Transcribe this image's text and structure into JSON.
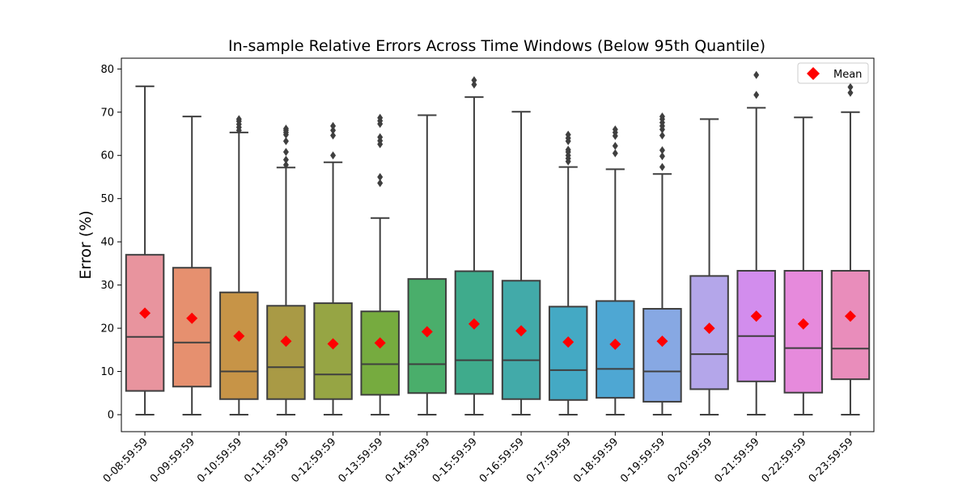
{
  "chart_data": {
    "type": "box",
    "title": "In-sample Relative Errors Across Time Windows (Below 95th Quantile)",
    "xlabel": "",
    "ylabel": "Error (%)",
    "ylim": [
      -4,
      83
    ],
    "yticks": [
      0,
      10,
      20,
      30,
      40,
      50,
      60,
      70,
      80
    ],
    "legend": {
      "label": "Mean",
      "position": "top-right",
      "marker": "red-diamond"
    },
    "colors": [
      "#e8949e",
      "#e6906f",
      "#c79447",
      "#a99a45",
      "#96a544",
      "#76ab3f",
      "#4aae6b",
      "#3fab8c",
      "#42aaa9",
      "#44a9c4",
      "#4ea7d3",
      "#87a8e3",
      "#b4a6ea",
      "#d28ded",
      "#e68adc",
      "#e98dbb"
    ],
    "categories": [
      "0-08:59:59",
      "0-09:59:59",
      "0-10:59:59",
      "0-11:59:59",
      "0-12:59:59",
      "0-13:59:59",
      "0-14:59:59",
      "0-15:59:59",
      "0-16:59:59",
      "0-17:59:59",
      "0-18:59:59",
      "0-19:59:59",
      "0-20:59:59",
      "0-21:59:59",
      "0-22:59:59",
      "0-23:59:59"
    ],
    "boxes": [
      {
        "min": 0,
        "q1": 5.5,
        "median": 18,
        "q3": 37,
        "max": 76,
        "mean": 23.5,
        "outliers": []
      },
      {
        "min": 0,
        "q1": 6.5,
        "median": 16.7,
        "q3": 34,
        "max": 69,
        "mean": 22.3,
        "outliers": []
      },
      {
        "min": 0,
        "q1": 3.6,
        "median": 10,
        "q3": 28.3,
        "max": 65.3,
        "mean": 18.2,
        "outliers": [
          65.8,
          66.5,
          67.2,
          67.9,
          68.4
        ]
      },
      {
        "min": 0,
        "q1": 3.6,
        "median": 11,
        "q3": 25.2,
        "max": 57.2,
        "mean": 17,
        "outliers": [
          57.8,
          59,
          60.8,
          63.3,
          64.8,
          65.3,
          65.8,
          66.2
        ]
      },
      {
        "min": 0,
        "q1": 3.6,
        "median": 9.3,
        "q3": 25.8,
        "max": 58.4,
        "mean": 16.4,
        "outliers": [
          60,
          64.6,
          65.8,
          66.8
        ]
      },
      {
        "min": 0,
        "q1": 4.6,
        "median": 11.7,
        "q3": 23.9,
        "max": 45.5,
        "mean": 16.6,
        "outliers": [
          53.6,
          55,
          62.6,
          63.4,
          64.2,
          67.3,
          68,
          68.7
        ]
      },
      {
        "min": 0,
        "q1": 5,
        "median": 11.7,
        "q3": 31.4,
        "max": 69.3,
        "mean": 19.2,
        "outliers": []
      },
      {
        "min": 0,
        "q1": 4.8,
        "median": 12.6,
        "q3": 33.2,
        "max": 73.5,
        "mean": 21,
        "outliers": [
          76.4,
          77.4
        ]
      },
      {
        "min": 0,
        "q1": 3.6,
        "median": 12.6,
        "q3": 31,
        "max": 70.1,
        "mean": 19.4,
        "outliers": []
      },
      {
        "min": 0,
        "q1": 3.4,
        "median": 10.3,
        "q3": 25,
        "max": 57.3,
        "mean": 16.8,
        "outliers": [
          58.6,
          59.3,
          60,
          60.8,
          61.3,
          63.3,
          64,
          64.8
        ]
      },
      {
        "min": 0,
        "q1": 3.9,
        "median": 10.6,
        "q3": 26.3,
        "max": 56.8,
        "mean": 16.3,
        "outliers": [
          60.5,
          62.2,
          64.5,
          65.3,
          66
        ]
      },
      {
        "min": 0,
        "q1": 3,
        "median": 10,
        "q3": 24.5,
        "max": 55.7,
        "mean": 17,
        "outliers": [
          57.3,
          59.8,
          61.2,
          64.6,
          66,
          66.8,
          67.6,
          68.4,
          69
        ]
      },
      {
        "min": 0,
        "q1": 5.9,
        "median": 14,
        "q3": 32.1,
        "max": 68.4,
        "mean": 20,
        "outliers": []
      },
      {
        "min": 0,
        "q1": 7.7,
        "median": 18.2,
        "q3": 33.3,
        "max": 71,
        "mean": 22.8,
        "outliers": [
          74,
          78.6
        ]
      },
      {
        "min": 0,
        "q1": 5.1,
        "median": 15.4,
        "q3": 33.3,
        "max": 68.8,
        "mean": 21,
        "outliers": []
      },
      {
        "min": 0,
        "q1": 8.2,
        "median": 15.3,
        "q3": 33.3,
        "max": 70,
        "mean": 22.8,
        "outliers": [
          74.5,
          75.8
        ]
      }
    ]
  }
}
